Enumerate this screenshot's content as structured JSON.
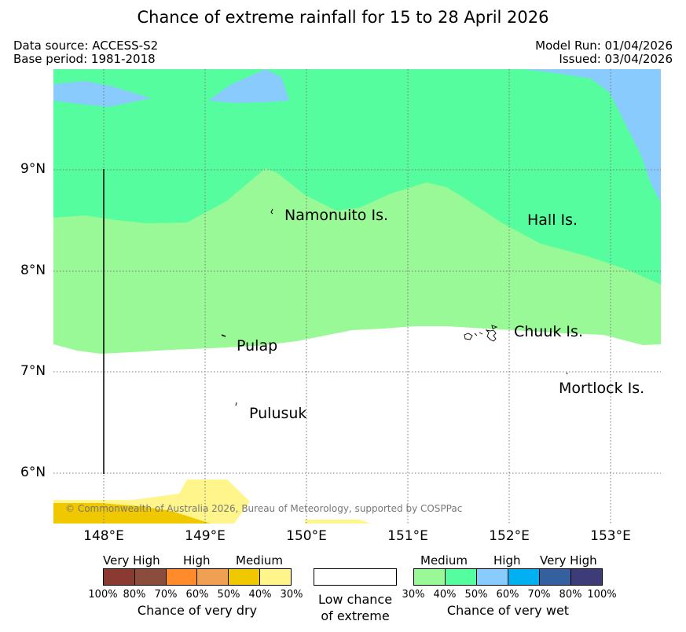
{
  "title": "Chance of extreme rainfall for 15 to 28 April 2026",
  "data_source": "Data source: ACCESS-S2",
  "base_period": "Base period: 1981-2018",
  "model_run": "Model Run: 01/04/2026",
  "issued": "Issued: 03/04/2026",
  "copyright": "© Commonwealth of Australia 2026, Bureau of Meteorology, supported by COSPPac",
  "axes": {
    "lat_labels": [
      "9°N",
      "8°N",
      "7°N",
      "6°N"
    ],
    "lon_labels": [
      "148°E",
      "149°E",
      "150°E",
      "151°E",
      "152°E",
      "153°E"
    ]
  },
  "places": {
    "namonuito": "Namonuito Is.",
    "hall": "Hall Is.",
    "pulap": "Pulap",
    "chuuk": "Chuuk Is.",
    "mortlock": "Mortlock Is.",
    "pulusuk": "Pulusuk"
  },
  "legend": {
    "dry": {
      "categories": [
        "Very High",
        "High",
        "Medium"
      ],
      "percents": [
        "100%",
        "80%",
        "70%",
        "60%",
        "50%",
        "40%",
        "30%"
      ],
      "title": "Chance of very dry",
      "colors": [
        "#8b3a32",
        "#8b4c3c",
        "#ff8b2a",
        "#f0a052",
        "#f0c800",
        "#fff58a"
      ]
    },
    "low": {
      "line1": "Low chance",
      "line2": "of extreme"
    },
    "wet": {
      "categories": [
        "Medium",
        "High",
        "Very High"
      ],
      "percents": [
        "30%",
        "40%",
        "50%",
        "60%",
        "70%",
        "80%",
        "100%"
      ],
      "title": "Chance of very wet",
      "colors": [
        "#99f996",
        "#55fd9e",
        "#89cbfd",
        "#00b0f0",
        "#3560a0",
        "#3e3b79"
      ]
    }
  }
}
